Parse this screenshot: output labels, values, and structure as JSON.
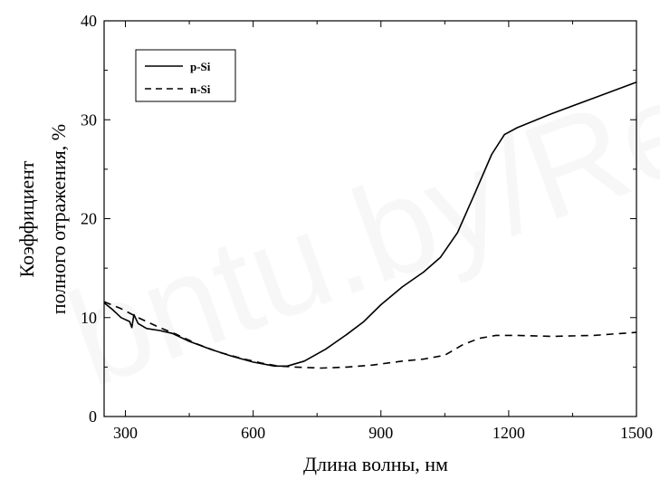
{
  "watermark": "bntu.by/Repository",
  "chart_data": {
    "type": "line",
    "xlabel": "Длина волны, нм",
    "ylabel_lines": [
      "Коэффициент",
      "полного отражения, %"
    ],
    "xlim": [
      250,
      1500
    ],
    "ylim": [
      0,
      40
    ],
    "x_ticks": [
      300,
      600,
      900,
      1200,
      1500
    ],
    "y_ticks": [
      0,
      10,
      20,
      30,
      40
    ],
    "legend_position": "top-left",
    "grid": false,
    "series": [
      {
        "name": "p-Si",
        "style": "solid",
        "points": [
          [
            250,
            11.5
          ],
          [
            270,
            10.8
          ],
          [
            290,
            10.0
          ],
          [
            310,
            9.6
          ],
          [
            315,
            9.0
          ],
          [
            320,
            10.3
          ],
          [
            330,
            9.4
          ],
          [
            350,
            8.9
          ],
          [
            380,
            8.7
          ],
          [
            410,
            8.4
          ],
          [
            450,
            7.6
          ],
          [
            500,
            6.8
          ],
          [
            550,
            6.1
          ],
          [
            600,
            5.5
          ],
          [
            650,
            5.1
          ],
          [
            680,
            5.1
          ],
          [
            720,
            5.6
          ],
          [
            770,
            6.8
          ],
          [
            820,
            8.3
          ],
          [
            860,
            9.6
          ],
          [
            900,
            11.3
          ],
          [
            950,
            13.1
          ],
          [
            1000,
            14.6
          ],
          [
            1040,
            16.1
          ],
          [
            1080,
            18.6
          ],
          [
            1120,
            22.5
          ],
          [
            1160,
            26.5
          ],
          [
            1190,
            28.5
          ],
          [
            1220,
            29.2
          ],
          [
            1300,
            30.6
          ],
          [
            1400,
            32.2
          ],
          [
            1500,
            33.8
          ]
        ]
      },
      {
        "name": "n-Si",
        "style": "dashed",
        "points": [
          [
            250,
            11.6
          ],
          [
            290,
            10.9
          ],
          [
            330,
            10.0
          ],
          [
            380,
            9.0
          ],
          [
            420,
            8.3
          ],
          [
            470,
            7.3
          ],
          [
            520,
            6.5
          ],
          [
            570,
            5.9
          ],
          [
            620,
            5.4
          ],
          [
            660,
            5.1
          ],
          [
            700,
            5.0
          ],
          [
            760,
            4.9
          ],
          [
            820,
            5.0
          ],
          [
            880,
            5.2
          ],
          [
            950,
            5.6
          ],
          [
            1000,
            5.8
          ],
          [
            1050,
            6.2
          ],
          [
            1090,
            7.2
          ],
          [
            1130,
            7.9
          ],
          [
            1170,
            8.2
          ],
          [
            1220,
            8.2
          ],
          [
            1300,
            8.1
          ],
          [
            1400,
            8.2
          ],
          [
            1500,
            8.5
          ]
        ]
      }
    ]
  }
}
